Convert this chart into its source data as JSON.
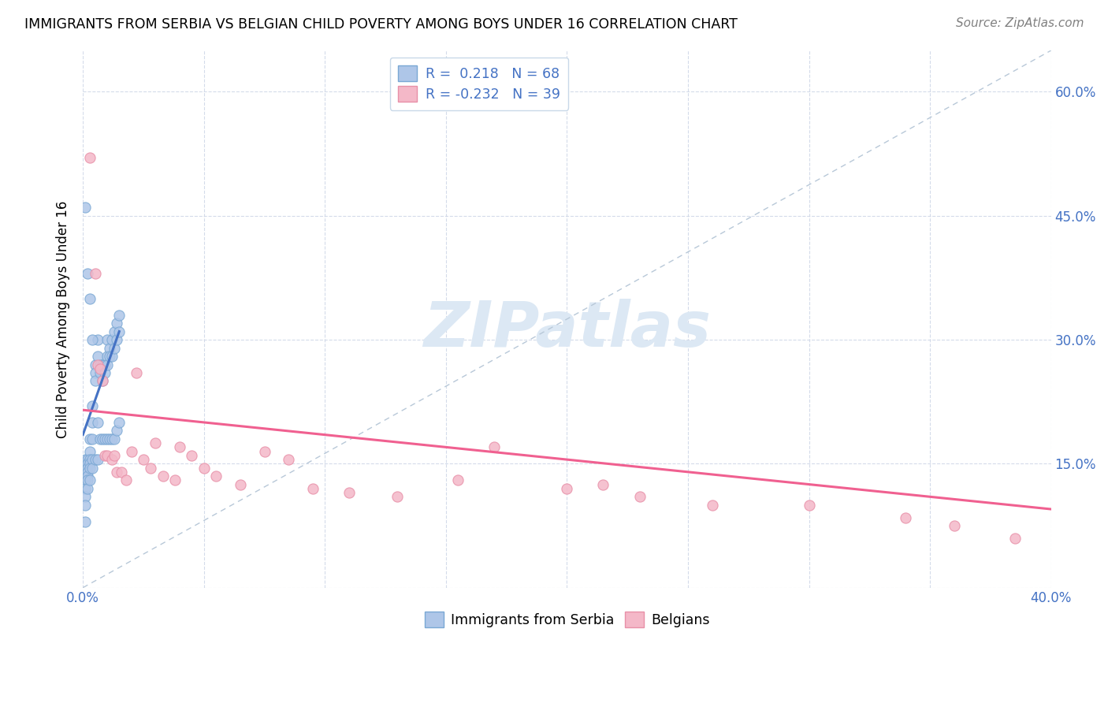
{
  "title": "IMMIGRANTS FROM SERBIA VS BELGIAN CHILD POVERTY AMONG BOYS UNDER 16 CORRELATION CHART",
  "source": "Source: ZipAtlas.com",
  "ylabel": "Child Poverty Among Boys Under 16",
  "xlim": [
    0.0,
    0.4
  ],
  "ylim": [
    0.0,
    0.65
  ],
  "xtick_positions": [
    0.0,
    0.05,
    0.1,
    0.15,
    0.2,
    0.25,
    0.3,
    0.35,
    0.4
  ],
  "xticklabels": [
    "0.0%",
    "",
    "",
    "",
    "",
    "",
    "",
    "",
    "40.0%"
  ],
  "ytick_positions": [
    0.0,
    0.15,
    0.3,
    0.45,
    0.6
  ],
  "yticklabels_right": [
    "",
    "15.0%",
    "30.0%",
    "45.0%",
    "60.0%"
  ],
  "r_serbia": 0.218,
  "n_serbia": 68,
  "r_belgian": -0.232,
  "n_belgian": 39,
  "serbia_face_color": "#aec6e8",
  "serbian_edge_color": "#7aa8d4",
  "belgian_face_color": "#f4b8c8",
  "belgian_edge_color": "#e890a8",
  "serbia_line_color": "#4472c4",
  "belgian_line_color": "#f06090",
  "dashed_line_color": "#b8c8d8",
  "watermark_text": "ZIPatlas",
  "watermark_color": "#dce8f4",
  "grid_color": "#d0d8e8",
  "tick_label_color": "#4472c4",
  "legend_text_color": "#4472c4",
  "serbia_x": [
    0.001,
    0.001,
    0.001,
    0.001,
    0.001,
    0.001,
    0.001,
    0.001,
    0.001,
    0.001,
    0.002,
    0.002,
    0.002,
    0.002,
    0.002,
    0.002,
    0.002,
    0.003,
    0.003,
    0.003,
    0.003,
    0.003,
    0.003,
    0.004,
    0.004,
    0.004,
    0.004,
    0.004,
    0.005,
    0.005,
    0.005,
    0.005,
    0.006,
    0.006,
    0.006,
    0.006,
    0.007,
    0.007,
    0.007,
    0.008,
    0.008,
    0.008,
    0.009,
    0.009,
    0.009,
    0.01,
    0.01,
    0.01,
    0.01,
    0.011,
    0.011,
    0.011,
    0.012,
    0.012,
    0.012,
    0.013,
    0.013,
    0.013,
    0.014,
    0.014,
    0.014,
    0.015,
    0.015,
    0.015,
    0.001,
    0.002,
    0.003,
    0.004
  ],
  "serbia_y": [
    0.155,
    0.15,
    0.145,
    0.14,
    0.135,
    0.13,
    0.12,
    0.11,
    0.1,
    0.08,
    0.155,
    0.15,
    0.145,
    0.14,
    0.135,
    0.13,
    0.12,
    0.18,
    0.165,
    0.155,
    0.15,
    0.145,
    0.13,
    0.22,
    0.2,
    0.18,
    0.155,
    0.145,
    0.27,
    0.26,
    0.25,
    0.155,
    0.3,
    0.28,
    0.2,
    0.155,
    0.27,
    0.26,
    0.18,
    0.27,
    0.25,
    0.18,
    0.27,
    0.26,
    0.18,
    0.3,
    0.28,
    0.27,
    0.18,
    0.29,
    0.28,
    0.18,
    0.3,
    0.28,
    0.18,
    0.31,
    0.29,
    0.18,
    0.32,
    0.3,
    0.19,
    0.33,
    0.31,
    0.2,
    0.46,
    0.38,
    0.35,
    0.3
  ],
  "belgian_x": [
    0.003,
    0.005,
    0.006,
    0.007,
    0.008,
    0.009,
    0.01,
    0.012,
    0.013,
    0.014,
    0.016,
    0.018,
    0.02,
    0.022,
    0.025,
    0.028,
    0.03,
    0.033,
    0.038,
    0.04,
    0.045,
    0.05,
    0.055,
    0.065,
    0.075,
    0.085,
    0.095,
    0.11,
    0.13,
    0.155,
    0.17,
    0.2,
    0.215,
    0.23,
    0.26,
    0.3,
    0.34,
    0.36,
    0.385
  ],
  "belgian_y": [
    0.52,
    0.38,
    0.27,
    0.265,
    0.25,
    0.16,
    0.16,
    0.155,
    0.16,
    0.14,
    0.14,
    0.13,
    0.165,
    0.26,
    0.155,
    0.145,
    0.175,
    0.135,
    0.13,
    0.17,
    0.16,
    0.145,
    0.135,
    0.125,
    0.165,
    0.155,
    0.12,
    0.115,
    0.11,
    0.13,
    0.17,
    0.12,
    0.125,
    0.11,
    0.1,
    0.1,
    0.085,
    0.075,
    0.06
  ],
  "serbia_line_x": [
    0.0,
    0.015
  ],
  "serbia_line_y": [
    0.185,
    0.31
  ],
  "belgian_line_x": [
    0.0,
    0.4
  ],
  "belgian_line_y": [
    0.215,
    0.095
  ]
}
